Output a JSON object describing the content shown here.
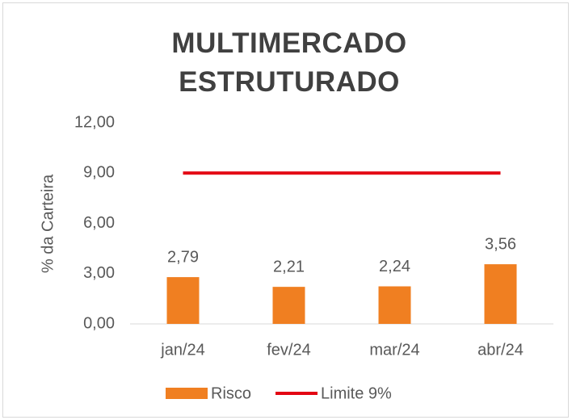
{
  "chart_data": {
    "type": "bar",
    "title": "MULTIMERCADO ESTRUTURADO",
    "y_label": "% da Carteira",
    "categories": [
      "jan/24",
      "fev/24",
      "mar/24",
      "abr/24"
    ],
    "series": [
      {
        "name": "Risco",
        "type": "bar",
        "color": "#f07f21",
        "values": [
          2.79,
          2.21,
          2.24,
          3.56
        ],
        "value_labels": [
          "2,79",
          "2,21",
          "2,24",
          "3,56"
        ]
      },
      {
        "name": "Limite 9%",
        "type": "line",
        "color": "#e30613",
        "values": [
          9,
          9,
          9,
          9
        ]
      }
    ],
    "ylim": [
      0,
      12
    ],
    "yticks": [
      {
        "value": 0,
        "label": "0,00"
      },
      {
        "value": 3,
        "label": "3,00"
      },
      {
        "value": 6,
        "label": "6,00"
      },
      {
        "value": 9,
        "label": "9,00"
      },
      {
        "value": 12,
        "label": "12,00"
      }
    ],
    "grid": false,
    "legend": "bottom"
  }
}
